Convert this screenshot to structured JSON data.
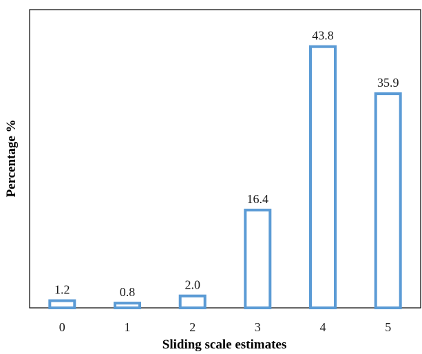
{
  "chart_data": {
    "type": "bar",
    "title": "",
    "xlabel": "Sliding scale estimates",
    "ylabel": "Percentage %",
    "categories": [
      "0",
      "1",
      "2",
      "3",
      "4",
      "5"
    ],
    "values": [
      1.2,
      0.8,
      2.0,
      16.4,
      43.8,
      35.9
    ],
    "data_labels": [
      "1.2",
      "0.8",
      "2.0",
      "16.4",
      "43.8",
      "35.9"
    ],
    "ylim": [
      0,
      50
    ],
    "grid": false,
    "legend": "none",
    "bar_style": "outline",
    "bar_color": "#5b9bd5"
  }
}
